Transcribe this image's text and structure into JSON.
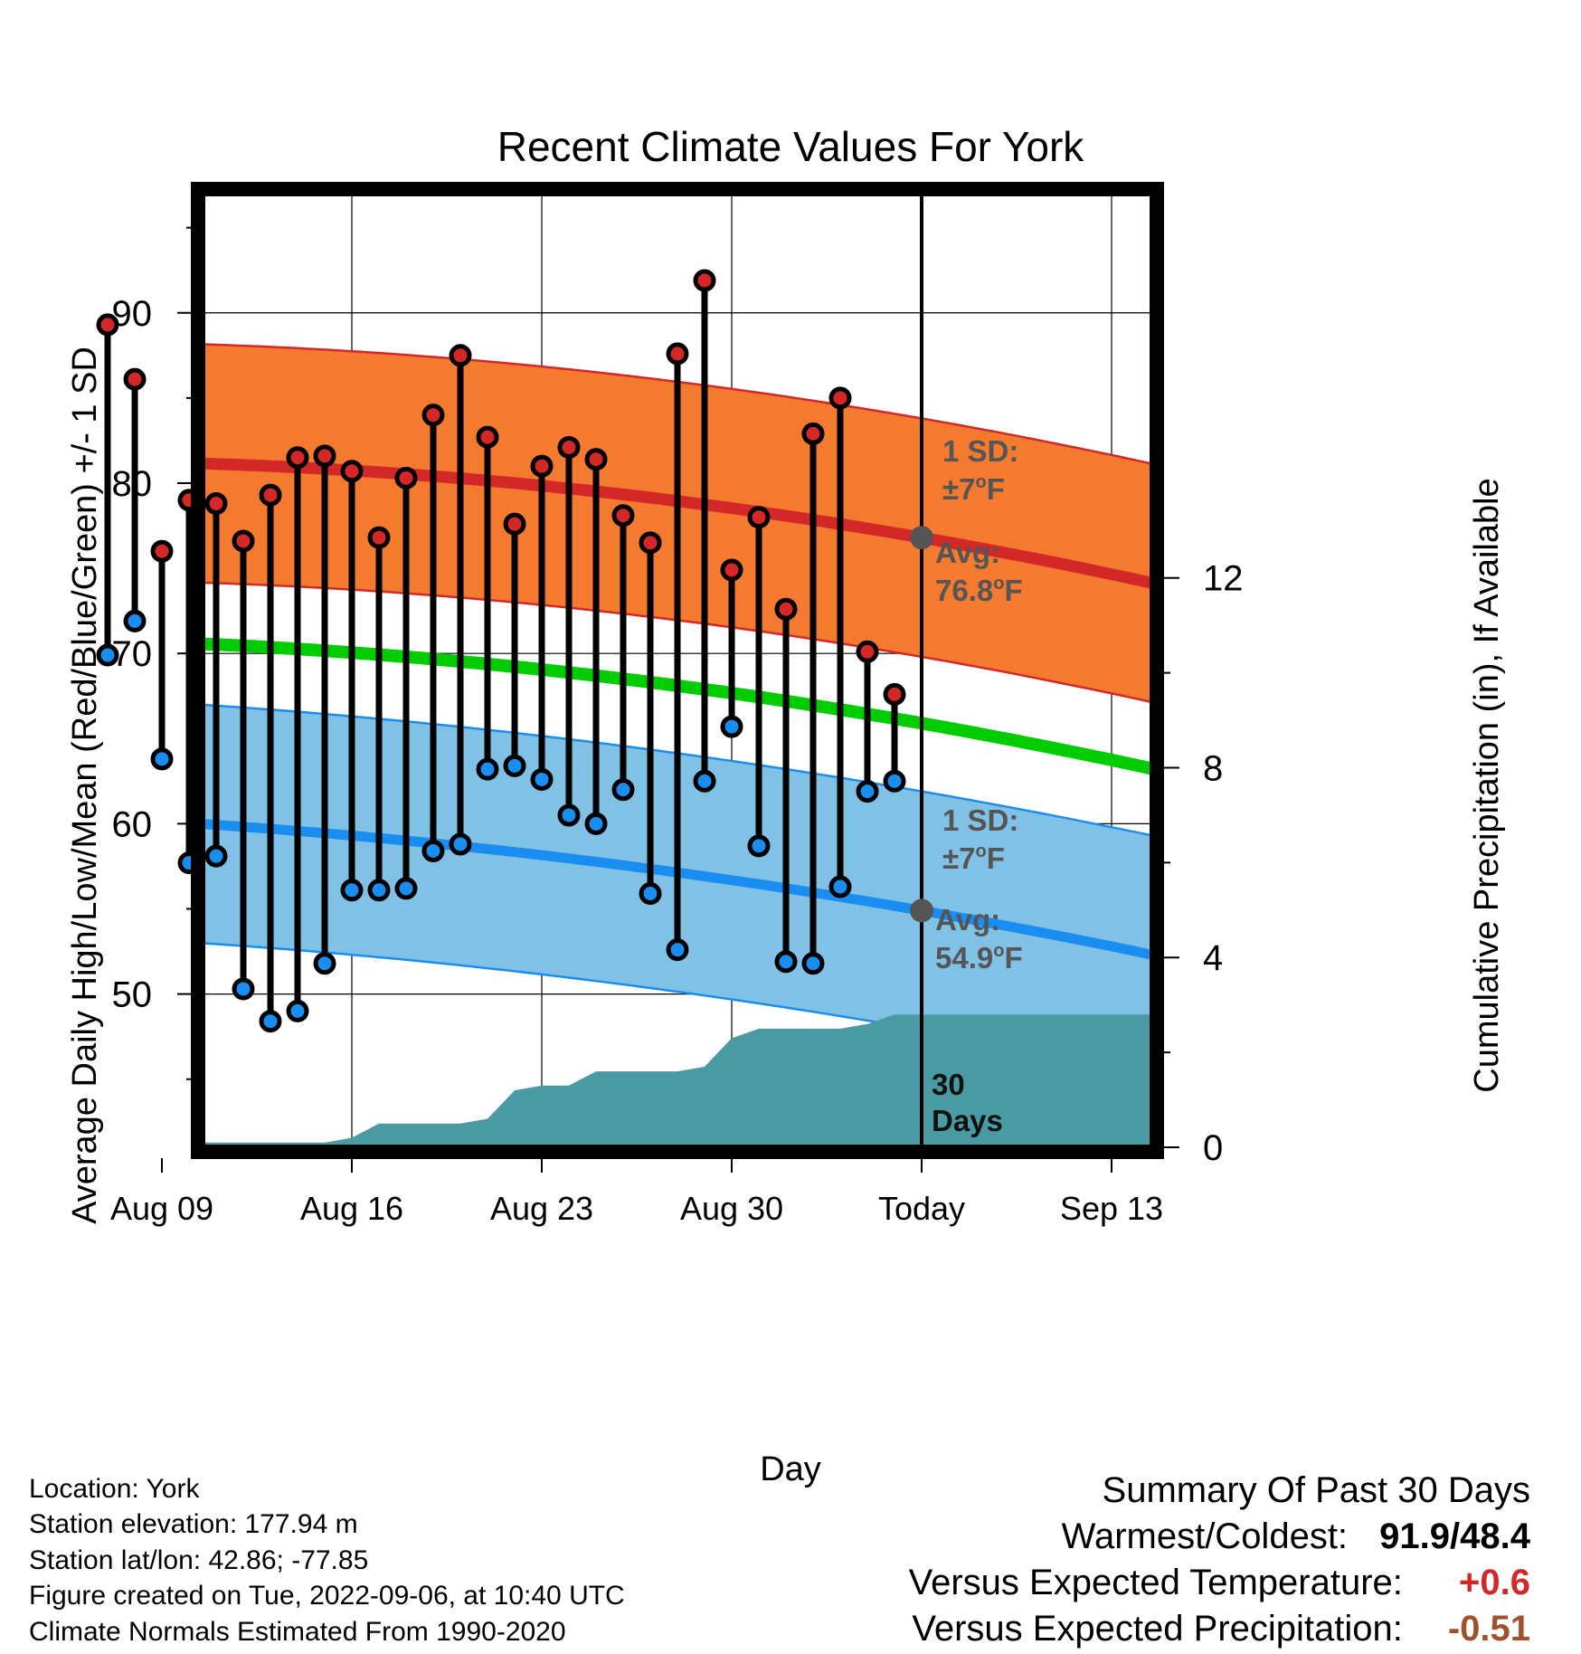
{
  "chart_data": {
    "type": "line",
    "title": "Recent Climate Values For York",
    "xlabel": "Day",
    "ylabel_left": "Average Daily High/Low/Mean (Red/Blue/Green) +/- 1 SD",
    "ylabel_right": "Cumulative Precipitation (in), If Available",
    "x_ticks": [
      "Aug 09",
      "Aug 16",
      "Aug 23",
      "Aug 30",
      "Today",
      "Sep 13"
    ],
    "x_range": [
      "Aug 06",
      "Sep 16"
    ],
    "y_left_range": [
      41,
      97
    ],
    "y_left_ticks": [
      50,
      60,
      70,
      80,
      90
    ],
    "y_right_range": [
      0,
      20.1
    ],
    "y_right_ticks": [
      0,
      4,
      8,
      12
    ],
    "grid": true,
    "dates": [
      "Aug 07",
      "Aug 08",
      "Aug 09",
      "Aug 10",
      "Aug 11",
      "Aug 12",
      "Aug 13",
      "Aug 14",
      "Aug 15",
      "Aug 16",
      "Aug 17",
      "Aug 18",
      "Aug 19",
      "Aug 20",
      "Aug 21",
      "Aug 22",
      "Aug 23",
      "Aug 24",
      "Aug 25",
      "Aug 26",
      "Aug 27",
      "Aug 28",
      "Aug 29",
      "Aug 30",
      "Aug 31",
      "Sep 01",
      "Sep 02",
      "Sep 03",
      "Sep 04",
      "Sep 05"
    ],
    "daily_high": [
      89.3,
      86.1,
      76.0,
      79.0,
      78.8,
      76.6,
      79.3,
      81.5,
      81.6,
      80.7,
      76.8,
      80.3,
      84.0,
      87.5,
      82.7,
      77.6,
      81.0,
      82.1,
      81.4,
      78.1,
      76.5,
      87.6,
      91.9,
      74.9,
      78.0,
      72.6,
      82.9,
      85.0,
      70.1,
      67.6
    ],
    "daily_low": [
      69.9,
      71.9,
      63.8,
      57.7,
      58.1,
      50.3,
      48.4,
      49.0,
      51.8,
      56.1,
      56.1,
      56.2,
      58.4,
      58.8,
      63.2,
      63.4,
      62.6,
      60.5,
      60.0,
      62.0,
      55.9,
      52.6,
      62.5,
      65.7,
      58.7,
      51.9,
      51.8,
      56.3,
      61.9,
      62.5
    ],
    "normal_high": {
      "start": 81.3,
      "today": 76.8,
      "end": 73.6,
      "sd": 7
    },
    "normal_low": {
      "start": 60.4,
      "today": 54.9,
      "end": 51.8,
      "sd": 7
    },
    "normal_mean": {
      "start": 70.8,
      "today": 65.9,
      "end": 62.7
    },
    "cumulative_precip_x": [
      "Aug 06",
      "Aug 07",
      "Aug 08",
      "Aug 09",
      "Aug 10",
      "Aug 11",
      "Aug 12",
      "Aug 13",
      "Aug 14",
      "Aug 15",
      "Aug 16",
      "Aug 17",
      "Aug 18",
      "Aug 19",
      "Aug 20",
      "Aug 21",
      "Aug 22",
      "Aug 23",
      "Aug 24",
      "Aug 25",
      "Aug 26",
      "Aug 27",
      "Aug 28",
      "Aug 29",
      "Aug 30",
      "Aug 31",
      "Sep 01",
      "Sep 02",
      "Sep 03",
      "Sep 04",
      "Sep 05",
      "Sep 06",
      "Sep 16"
    ],
    "cumulative_precip": [
      0,
      0,
      0.05,
      0.1,
      0.1,
      0.1,
      0.1,
      0.1,
      0.1,
      0.1,
      0.2,
      0.5,
      0.5,
      0.5,
      0.5,
      0.6,
      1.2,
      1.3,
      1.3,
      1.6,
      1.6,
      1.6,
      1.6,
      1.7,
      2.3,
      2.5,
      2.5,
      2.5,
      2.5,
      2.6,
      2.8,
      2.8,
      2.8
    ],
    "labels": {
      "high_sd": [
        "1 SD:",
        "±7",
        "o",
        "F"
      ],
      "high_avg": [
        "Avg:",
        "76.8",
        "o",
        "F"
      ],
      "low_sd": [
        "1 SD:",
        "±7",
        "o",
        "F"
      ],
      "low_avg": [
        "Avg:",
        "54.9",
        "o",
        "F"
      ],
      "window": [
        "30",
        "Days"
      ]
    },
    "colors": {
      "high_band": "#f47a30",
      "high_line": "#d42828",
      "low_band": "#82c1e6",
      "low_line": "#1a8ef0",
      "mean_line": "#00cc00",
      "precip": "#4a9aa3",
      "high_marker": "#d42828",
      "low_marker": "#1a8ef0",
      "label_text": "#555555"
    }
  },
  "info": {
    "location": "Location: York",
    "elevation": "Station elevation: 177.94 m",
    "latlon": "Station lat/lon: 42.86; -77.85",
    "created": "Figure created on Tue, 2022-09-06, at 10:40 UTC",
    "normals": "Climate Normals Estimated From 1990-2020"
  },
  "summary": {
    "title": "Summary Of Past 30 Days",
    "warmest_label": "Warmest/Coldest:",
    "warmest_value": "91.9/48.4",
    "temp_label": "Versus Expected Temperature:",
    "temp_value": "+0.6",
    "temp_color": "#d42828",
    "precip_label": "Versus Expected Precipitation:",
    "precip_value": "-0.51",
    "precip_color": "#a0522d"
  }
}
